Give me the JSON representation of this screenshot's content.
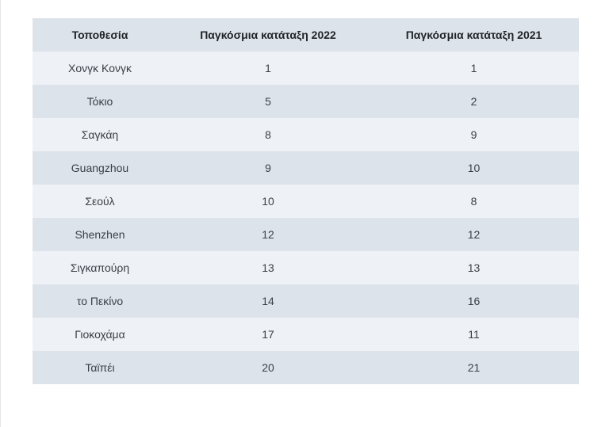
{
  "table": {
    "headers": [
      "Τοποθεσία",
      "Παγκόσμια κατάταξη 2022",
      "Παγκόσμια κατάταξη 2021"
    ],
    "rows": [
      [
        "Χονγκ Κονγκ",
        "1",
        "1"
      ],
      [
        "Τόκιο",
        "5",
        "2"
      ],
      [
        "Σαγκάη",
        "8",
        "9"
      ],
      [
        "Guangzhou",
        "9",
        "10"
      ],
      [
        "Σεούλ",
        "10",
        "8"
      ],
      [
        "Shenzhen",
        "12",
        "12"
      ],
      [
        "Σιγκαπούρη",
        "13",
        "13"
      ],
      [
        "το Πεκίνο",
        "14",
        "16"
      ],
      [
        "Γιοκοχάμα",
        "17",
        "11"
      ],
      [
        "Ταϊπέι",
        "20",
        "21"
      ]
    ]
  }
}
